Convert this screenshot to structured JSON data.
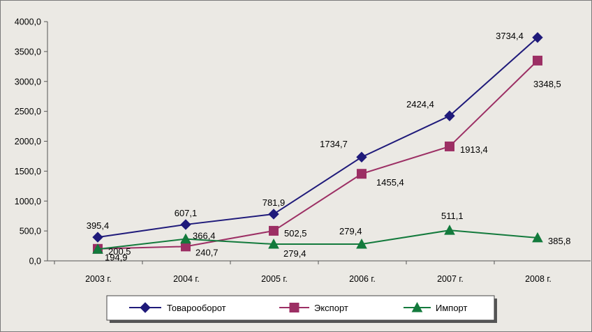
{
  "chart_data": {
    "type": "line",
    "title": "",
    "xlabel": "",
    "ylabel": "",
    "categories": [
      "2003 г.",
      "2004 г.",
      "2005 г.",
      "2006 г.",
      "2007 г.",
      "2008 г."
    ],
    "ylim": [
      0,
      4000
    ],
    "yticks": [
      "0,0",
      "500,0",
      "1000,0",
      "1500,0",
      "2000,0",
      "2500,0",
      "3000,0",
      "3500,0",
      "4000,0"
    ],
    "grid": false,
    "legend_position": "bottom",
    "series": [
      {
        "name": "Товарооборот",
        "color": "#1f1a7a",
        "marker": "diamond",
        "values": [
          395.4,
          607.1,
          781.9,
          1734.7,
          2424.4,
          3734.4
        ],
        "labels": [
          "395,4",
          "607,1",
          "781,9",
          "1734,7",
          "2424,4",
          "3734,4"
        ]
      },
      {
        "name": "Экспорт",
        "color": "#9c2f64",
        "marker": "square",
        "values": [
          200.5,
          240.7,
          502.5,
          1455.4,
          1913.4,
          3348.5
        ],
        "labels": [
          "200,5",
          "240,7",
          "502,5",
          "1455,4",
          "1913,4",
          "3348,5"
        ]
      },
      {
        "name": "Импорт",
        "color": "#137a3c",
        "marker": "triangle",
        "values": [
          194.9,
          366.4,
          279.4,
          279.4,
          511.1,
          385.8
        ],
        "labels": [
          "194,9",
          "366,4",
          "279,4",
          "279,4",
          "511,1",
          "385,8"
        ]
      }
    ]
  }
}
